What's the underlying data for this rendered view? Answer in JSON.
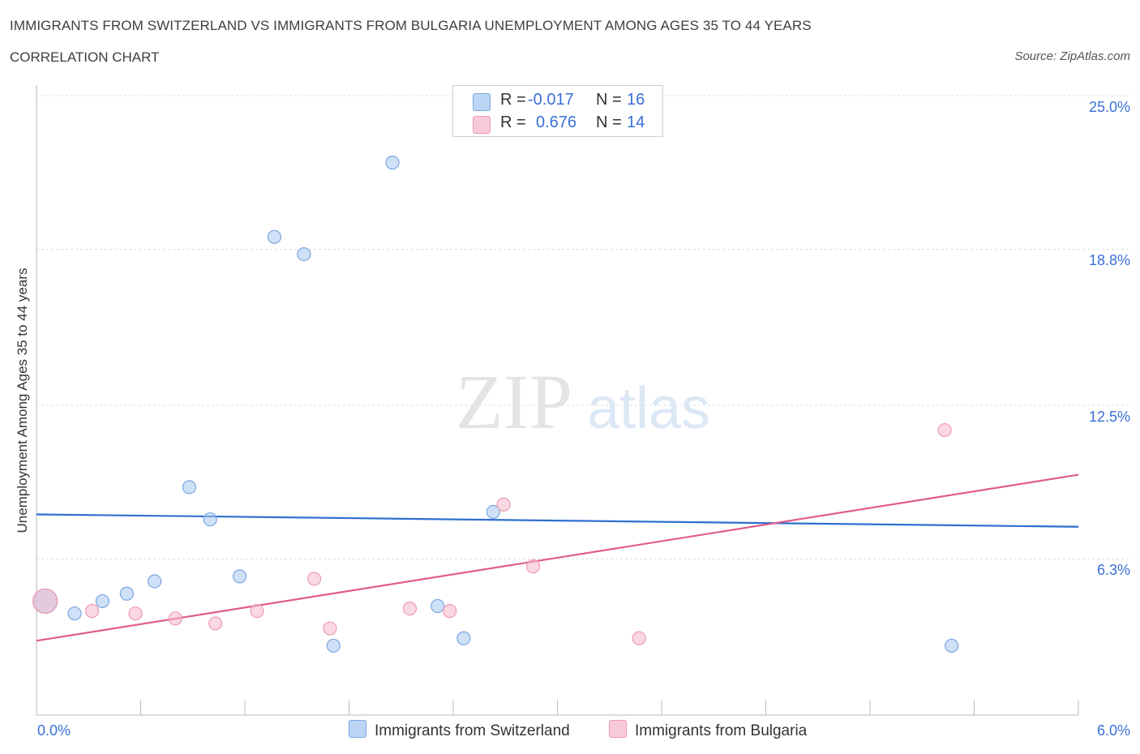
{
  "header": {
    "title": "IMMIGRANTS FROM SWITZERLAND VS IMMIGRANTS FROM BULGARIA UNEMPLOYMENT AMONG AGES 35 TO 44 YEARS",
    "subtitle": "CORRELATION CHART",
    "source": "Source: ZipAtlas.com"
  },
  "watermark": {
    "zip": "ZIP",
    "atlas": "atlas"
  },
  "legend": {
    "r_label": "R =",
    "n_label": "N =",
    "rows": [
      {
        "r": "-0.017",
        "n": "16",
        "color": "#a8c8f0"
      },
      {
        "r": "0.676",
        "n": "14",
        "color": "#f5b8cb"
      }
    ]
  },
  "chart_data": {
    "type": "scatter",
    "title": "IMMIGRANTS FROM SWITZERLAND VS IMMIGRANTS FROM BULGARIA UNEMPLOYMENT AMONG AGES 35 TO 44 YEARS",
    "subtitle": "CORRELATION CHART",
    "xlabel": "",
    "ylabel": "Unemployment Among Ages 35 to 44 years",
    "xlim": [
      0,
      6
    ],
    "ylim": [
      0,
      25
    ],
    "x_tick_labels": [
      "0.0%",
      "6.0%"
    ],
    "y_ticks": [
      6.3,
      12.5,
      18.8,
      25.0
    ],
    "y_tick_labels": [
      "6.3%",
      "12.5%",
      "18.8%",
      "25.0%"
    ],
    "grid": true,
    "legend_placement": "top-center",
    "series": [
      {
        "name": "Immigrants from Switzerland",
        "color": "#a8c8f0",
        "line_color": "#2f6fd0",
        "x": [
          0.05,
          0.22,
          0.38,
          0.52,
          0.68,
          0.88,
          1.0,
          1.17,
          1.37,
          1.54,
          1.71,
          2.05,
          2.31,
          2.46,
          2.63,
          5.27
        ],
        "y": [
          4.6,
          4.1,
          4.6,
          4.9,
          5.4,
          9.2,
          7.9,
          5.6,
          19.3,
          18.6,
          2.8,
          22.3,
          4.4,
          3.1,
          8.2,
          2.8
        ],
        "trend": {
          "x": [
            0,
            6
          ],
          "y": [
            8.1,
            7.6
          ]
        }
      },
      {
        "name": "Immigrants from Bulgaria",
        "color": "#f5b8cb",
        "line_color": "#e05c8c",
        "x": [
          0.05,
          0.32,
          0.57,
          0.8,
          1.03,
          1.27,
          1.6,
          1.69,
          2.15,
          2.38,
          2.69,
          2.86,
          3.47,
          5.23
        ],
        "y": [
          4.6,
          4.2,
          4.1,
          3.9,
          3.7,
          4.2,
          5.5,
          3.5,
          4.3,
          4.2,
          8.5,
          6.0,
          3.1,
          11.5
        ],
        "trend": {
          "x": [
            0,
            6
          ],
          "y": [
            3.0,
            9.7
          ]
        }
      }
    ]
  }
}
